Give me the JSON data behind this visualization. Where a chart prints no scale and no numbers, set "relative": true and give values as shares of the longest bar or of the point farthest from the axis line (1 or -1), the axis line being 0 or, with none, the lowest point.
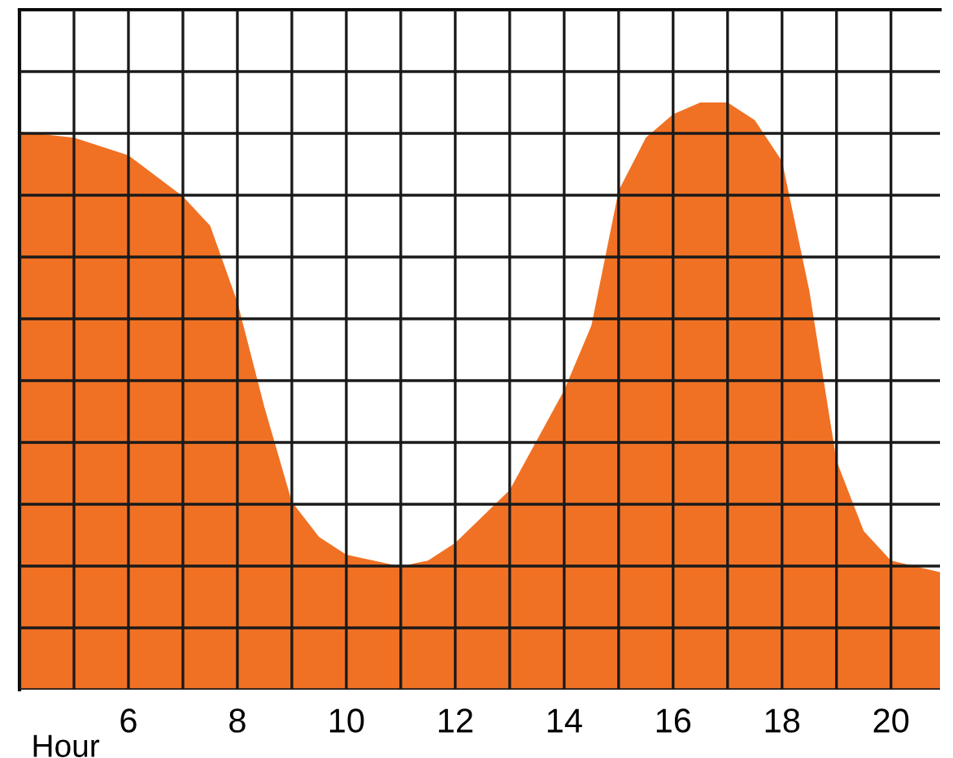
{
  "chart_data": {
    "type": "area",
    "xlabel": "Hour",
    "relative": true,
    "grid": true,
    "color": "#f07124",
    "x": [
      4,
      5,
      6,
      7,
      7.5,
      8,
      8.5,
      9,
      9.5,
      10,
      11,
      11.5,
      12,
      13,
      14,
      14.5,
      15,
      15.5,
      16,
      16.5,
      17,
      17.5,
      18,
      18.5,
      19,
      19.5,
      20,
      20.9
    ],
    "values": [
      0.95,
      0.94,
      0.91,
      0.84,
      0.79,
      0.66,
      0.48,
      0.32,
      0.26,
      0.23,
      0.21,
      0.22,
      0.25,
      0.34,
      0.51,
      0.62,
      0.85,
      0.94,
      0.98,
      1.0,
      1.0,
      0.97,
      0.9,
      0.68,
      0.39,
      0.27,
      0.22,
      0.2
    ],
    "xlim": [
      4,
      20.9
    ],
    "xticks": [
      {
        "value": 4,
        "label": null
      },
      {
        "value": 5,
        "label": null
      },
      6,
      {
        "value": 7,
        "label": null
      },
      8,
      {
        "value": 9,
        "label": null
      },
      10,
      {
        "value": 11,
        "label": null
      },
      12,
      {
        "value": 13,
        "label": null
      },
      14,
      {
        "value": 15,
        "label": null
      },
      16,
      {
        "value": 17,
        "label": null
      },
      18,
      {
        "value": 19,
        "label": null
      },
      20
    ]
  }
}
